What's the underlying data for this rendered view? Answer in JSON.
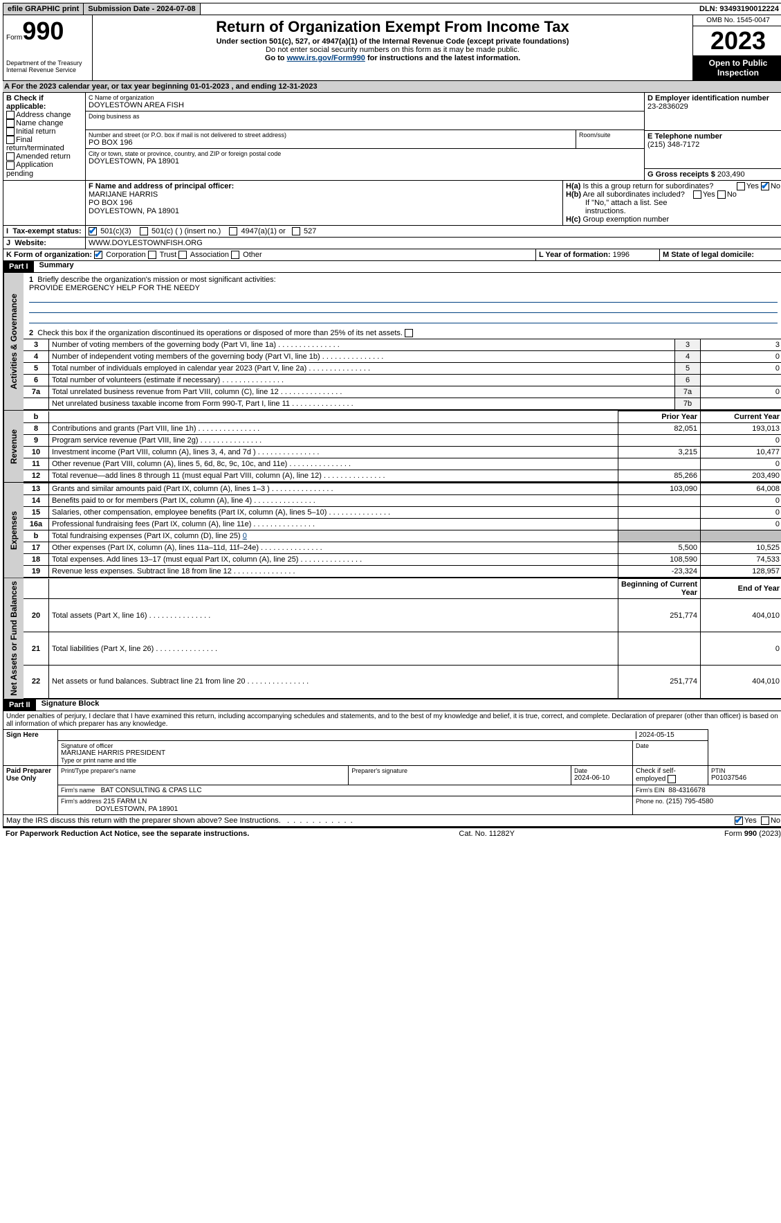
{
  "topbar": {
    "efile": "efile GRAPHIC print",
    "submission": "Submission Date - 2024-07-08",
    "dln": "DLN: 93493190012224"
  },
  "header": {
    "form_label": "Form",
    "form_num": "990",
    "title": "Return of Organization Exempt From Income Tax",
    "subtitle": "Under section 501(c), 527, or 4947(a)(1) of the Internal Revenue Code (except private foundations)",
    "privacy": "Do not enter social security numbers on this form as it may be made public.",
    "goto_prefix": "Go to ",
    "goto_link": "www.irs.gov/Form990",
    "goto_suffix": " for instructions and the latest information.",
    "dept": "Department of the Treasury Internal Revenue Service",
    "omb": "OMB No. 1545-0047",
    "year": "2023",
    "open": "Open to Public Inspection"
  },
  "A": {
    "text": "For the 2023 calendar year, or tax year beginning 01-01-2023   , and ending 12-31-2023"
  },
  "B": {
    "label": "B Check if applicable:",
    "opts": [
      "Address change",
      "Name change",
      "Initial return",
      "Final return/terminated",
      "Amended return",
      "Application pending"
    ]
  },
  "C": {
    "name_label": "C Name of organization",
    "name": "DOYLESTOWN AREA FISH",
    "dba_label": "Doing business as",
    "street_label": "Number and street (or P.O. box if mail is not delivered to street address)",
    "street": "PO BOX 196",
    "room_label": "Room/suite",
    "city_label": "City or town, state or province, country, and ZIP or foreign postal code",
    "city": "DOYLESTOWN, PA  18901"
  },
  "D": {
    "label": "D Employer identification number",
    "value": "23-2836029"
  },
  "E": {
    "label": "E Telephone number",
    "value": "(215) 348-7172"
  },
  "G": {
    "label": "G Gross receipts $",
    "value": "203,490"
  },
  "F": {
    "label": "F  Name and address of principal officer:",
    "name": "MARIJANE HARRIS",
    "street": "PO BOX 196",
    "city": "DOYLESTOWN, PA  18901"
  },
  "H": {
    "a": "Is this a group return for subordinates?",
    "b": "Are all subordinates included?",
    "b_note": "If \"No,\" attach a list. See instructions.",
    "c": "Group exemption number",
    "yes": "Yes",
    "no": "No"
  },
  "I": {
    "label": "Tax-exempt status:",
    "opts": [
      "501(c)(3)",
      "501(c) (  ) (insert no.)",
      "4947(a)(1) or",
      "527"
    ]
  },
  "J": {
    "label": "Website:",
    "value": "WWW.DOYLESTOWNFISH.ORG"
  },
  "K": {
    "label": "K Form of organization:",
    "opts": [
      "Corporation",
      "Trust",
      "Association",
      "Other"
    ]
  },
  "L": {
    "label": "L Year of formation:",
    "value": "1996"
  },
  "M": {
    "label": "M State of legal domicile:",
    "value": ""
  },
  "part1": {
    "header": "Part I",
    "title": "Summary"
  },
  "summary": {
    "q1": "Briefly describe the organization's mission or most significant activities:",
    "mission": "PROVIDE EMERGENCY HELP FOR THE NEEDY",
    "q2": "Check this box      if the organization discontinued its operations or disposed of more than 25% of its net assets.",
    "lines_gov": [
      {
        "n": "3",
        "text": "Number of voting members of the governing body (Part VI, line 1a)",
        "box": "3",
        "val": "3"
      },
      {
        "n": "4",
        "text": "Number of independent voting members of the governing body (Part VI, line 1b)",
        "box": "4",
        "val": "0"
      },
      {
        "n": "5",
        "text": "Total number of individuals employed in calendar year 2023 (Part V, line 2a)",
        "box": "5",
        "val": "0"
      },
      {
        "n": "6",
        "text": "Total number of volunteers (estimate if necessary)",
        "box": "6",
        "val": ""
      },
      {
        "n": "7a",
        "text": "Total unrelated business revenue from Part VIII, column (C), line 12",
        "box": "7a",
        "val": "0"
      },
      {
        "n": "",
        "text": "Net unrelated business taxable income from Form 990-T, Part I, line 11",
        "box": "7b",
        "val": ""
      }
    ],
    "col_prior": "Prior Year",
    "col_current": "Current Year",
    "revenue": [
      {
        "n": "8",
        "text": "Contributions and grants (Part VIII, line 1h)",
        "prior": "82,051",
        "curr": "193,013"
      },
      {
        "n": "9",
        "text": "Program service revenue (Part VIII, line 2g)",
        "prior": "",
        "curr": "0"
      },
      {
        "n": "10",
        "text": "Investment income (Part VIII, column (A), lines 3, 4, and 7d )",
        "prior": "3,215",
        "curr": "10,477"
      },
      {
        "n": "11",
        "text": "Other revenue (Part VIII, column (A), lines 5, 6d, 8c, 9c, 10c, and 11e)",
        "prior": "",
        "curr": "0"
      },
      {
        "n": "12",
        "text": "Total revenue—add lines 8 through 11 (must equal Part VIII, column (A), line 12)",
        "prior": "85,266",
        "curr": "203,490"
      }
    ],
    "expenses": [
      {
        "n": "13",
        "text": "Grants and similar amounts paid (Part IX, column (A), lines 1–3 )",
        "prior": "103,090",
        "curr": "64,008"
      },
      {
        "n": "14",
        "text": "Benefits paid to or for members (Part IX, column (A), line 4)",
        "prior": "",
        "curr": "0"
      },
      {
        "n": "15",
        "text": "Salaries, other compensation, employee benefits (Part IX, column (A), lines 5–10)",
        "prior": "",
        "curr": "0"
      },
      {
        "n": "16a",
        "text": "Professional fundraising fees (Part IX, column (A), line 11e)",
        "prior": "",
        "curr": "0"
      }
    ],
    "exp_b": {
      "n": "b",
      "text": "Total fundraising expenses (Part IX, column (D), line 25)",
      "val": "0"
    },
    "expenses2": [
      {
        "n": "17",
        "text": "Other expenses (Part IX, column (A), lines 11a–11d, 11f–24e)",
        "prior": "5,500",
        "curr": "10,525"
      },
      {
        "n": "18",
        "text": "Total expenses. Add lines 13–17 (must equal Part IX, column (A), line 25)",
        "prior": "108,590",
        "curr": "74,533"
      },
      {
        "n": "19",
        "text": "Revenue less expenses. Subtract line 18 from line 12",
        "prior": "-23,324",
        "curr": "128,957"
      }
    ],
    "col_begin": "Beginning of Current Year",
    "col_end": "End of Year",
    "netassets": [
      {
        "n": "20",
        "text": "Total assets (Part X, line 16)",
        "prior": "251,774",
        "curr": "404,010"
      },
      {
        "n": "21",
        "text": "Total liabilities (Part X, line 26)",
        "prior": "",
        "curr": "0"
      },
      {
        "n": "22",
        "text": "Net assets or fund balances. Subtract line 21 from line 20",
        "prior": "251,774",
        "curr": "404,010"
      }
    ],
    "vlabels": {
      "gov": "Activities & Governance",
      "rev": "Revenue",
      "exp": "Expenses",
      "net": "Net Assets or Fund Balances"
    }
  },
  "part2": {
    "header": "Part II",
    "title": "Signature Block"
  },
  "sig": {
    "declaration": "Under penalties of perjury, I declare that I have examined this return, including accompanying schedules and statements, and to the best of my knowledge and belief, it is true, correct, and complete. Declaration of preparer (other than officer) is based on all information of which preparer has any knowledge.",
    "sign_here": "Sign Here",
    "sig_label": "Signature of officer",
    "date_label": "Date",
    "date_val": "2024-05-15",
    "officer": "MARIJANE HARRIS  PRESIDENT",
    "type_label": "Type or print name and title",
    "paid": "Paid Preparer Use Only",
    "prep_name_label": "Print/Type preparer's name",
    "prep_sig_label": "Preparer's signature",
    "prep_date_label": "Date",
    "prep_date": "2024-06-10",
    "self_emp": "Check       if self-employed",
    "ptin_label": "PTIN",
    "ptin": "P01037546",
    "firm_name_label": "Firm's name",
    "firm_name": "BAT CONSULTING & CPAS LLC",
    "firm_ein_label": "Firm's EIN",
    "firm_ein": "88-4316678",
    "firm_addr_label": "Firm's address",
    "firm_addr1": "215 FARM LN",
    "firm_addr2": "DOYLESTOWN, PA  18901",
    "phone_label": "Phone no.",
    "phone": "(215) 795-4580",
    "discuss": "May the IRS discuss this return with the preparer shown above? See Instructions."
  },
  "footer": {
    "paperwork": "For Paperwork Reduction Act Notice, see the separate instructions.",
    "cat": "Cat. No. 11282Y",
    "form": "Form 990 (2023)"
  }
}
